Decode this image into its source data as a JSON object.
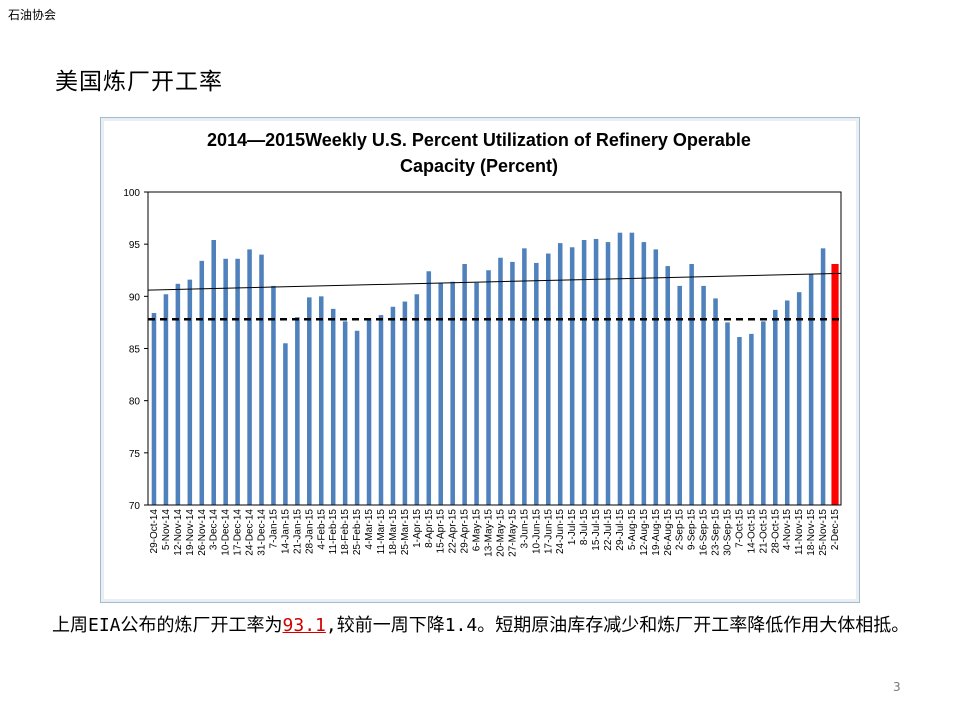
{
  "header": {
    "org": "石油协会"
  },
  "slide": {
    "title": "美国炼厂开工率",
    "page_number": "3"
  },
  "caption": {
    "before": "上周EIA公布的炼厂开工率为",
    "highlight": "93.1",
    "after": ",较前一周下降1.4。短期原油库存减少和炼厂开工率降低作用大体相抵。"
  },
  "colors": {
    "bar": "#4f81bd",
    "last_bar": "#ff0000",
    "avg_line": "#000000",
    "trend_line": "#000000",
    "plot_border": "#000000"
  },
  "chart_data": {
    "type": "bar",
    "title_line1": "2014—2015Weekly U.S. Percent Utilization of Refinery Operable",
    "title_line2": "Capacity (Percent)",
    "ylim": [
      70,
      100
    ],
    "yticks": [
      70,
      75,
      80,
      85,
      90,
      95,
      100
    ],
    "average": 87.8,
    "trend": {
      "start": 90.6,
      "end": 92.2
    },
    "grid": false,
    "categories": [
      "29-Oct-14",
      "5-Nov-14",
      "12-Nov-14",
      "19-Nov-14",
      "26-Nov-14",
      "3-Dec-14",
      "10-Dec-14",
      "17-Dec-14",
      "24-Dec-14",
      "31-Dec-14",
      "7-Jan-15",
      "14-Jan-15",
      "21-Jan-15",
      "28-Jan-15",
      "4-Feb-15",
      "11-Feb-15",
      "18-Feb-15",
      "25-Feb-15",
      "4-Mar-15",
      "11-Mar-15",
      "18-Mar-15",
      "25-Mar-15",
      "1-Apr-15",
      "8-Apr-15",
      "15-Apr-15",
      "22-Apr-15",
      "29-Apr-15",
      "6-May-15",
      "13-May-15",
      "20-May-15",
      "27-May-15",
      "3-Jun-15",
      "10-Jun-15",
      "17-Jun-15",
      "24-Jun-15",
      "1-Jul-15",
      "8-Jul-15",
      "15-Jul-15",
      "22-Jul-15",
      "29-Jul-15",
      "5-Aug-15",
      "12-Aug-15",
      "19-Aug-15",
      "26-Aug-15",
      "2-Sep-15",
      "9-Sep-15",
      "16-Sep-15",
      "23-Sep-15",
      "30-Sep-15",
      "7-Oct-15",
      "14-Oct-15",
      "21-Oct-15",
      "28-Oct-15",
      "4-Nov-15",
      "11-Nov-15",
      "18-Nov-15",
      "25-Nov-15",
      "2-Dec-15"
    ],
    "values": [
      88.4,
      90.2,
      91.2,
      91.6,
      93.4,
      95.4,
      93.6,
      93.6,
      94.5,
      94.0,
      91.0,
      85.5,
      88.0,
      89.9,
      90.0,
      88.8,
      87.6,
      86.7,
      87.9,
      88.2,
      89.0,
      89.5,
      90.2,
      92.4,
      91.3,
      91.4,
      93.1,
      91.3,
      92.5,
      93.7,
      93.3,
      94.6,
      93.2,
      94.1,
      95.1,
      94.7,
      95.4,
      95.5,
      95.2,
      96.1,
      96.1,
      95.2,
      94.5,
      92.9,
      91.0,
      93.1,
      91.0,
      89.8,
      87.5,
      86.1,
      86.4,
      87.6,
      88.7,
      89.6,
      90.4,
      92.1,
      94.6,
      93.1
    ],
    "highlight_index": 57
  }
}
